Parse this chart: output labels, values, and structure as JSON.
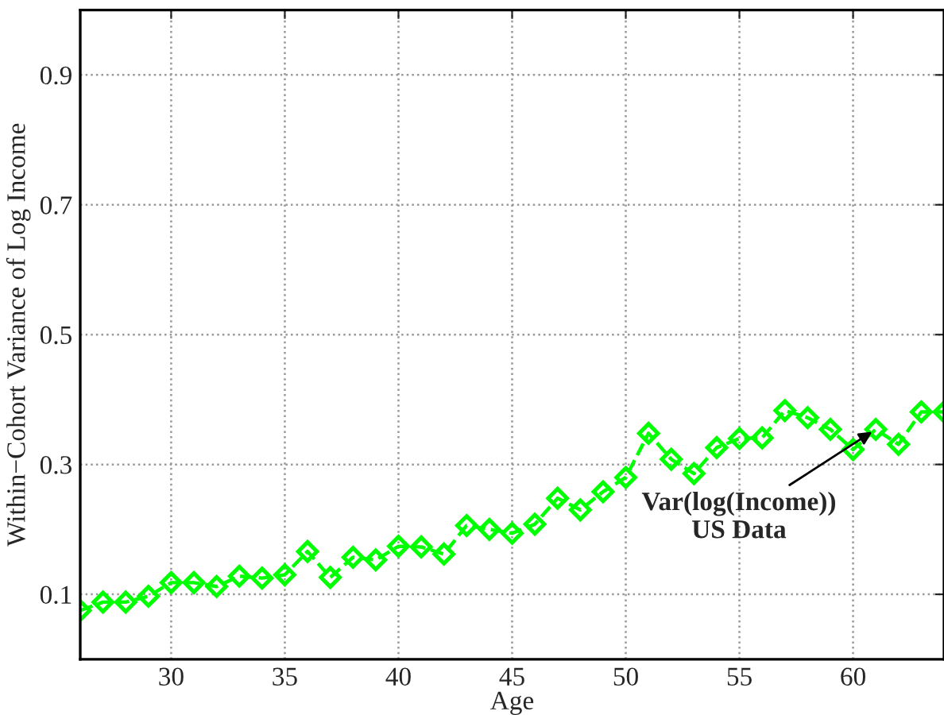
{
  "chart_data": {
    "type": "line",
    "xlabel": "Age",
    "ylabel": "Within−Cohort Variance of Log Income",
    "x": [
      26,
      27,
      28,
      29,
      30,
      31,
      32,
      33,
      34,
      35,
      36,
      37,
      38,
      39,
      40,
      41,
      42,
      43,
      44,
      45,
      46,
      47,
      48,
      49,
      50,
      51,
      52,
      53,
      54,
      55,
      56,
      57,
      58,
      59,
      60,
      61,
      62,
      63,
      64
    ],
    "series": [
      {
        "color": "#00ff00",
        "values": [
          0.075,
          0.088,
          0.088,
          0.097,
          0.118,
          0.118,
          0.112,
          0.128,
          0.125,
          0.13,
          0.166,
          0.126,
          0.157,
          0.153,
          0.174,
          0.173,
          0.162,
          0.206,
          0.2,
          0.194,
          0.208,
          0.248,
          0.23,
          0.258,
          0.28,
          0.348,
          0.308,
          0.286,
          0.326,
          0.34,
          0.341,
          0.383,
          0.372,
          0.354,
          0.323,
          0.354,
          0.331,
          0.381,
          0.381
        ]
      }
    ],
    "marker": "diamond",
    "line_style": "dashed",
    "grid": true,
    "xlim": [
      26,
      64
    ],
    "xticks": [
      30,
      35,
      40,
      45,
      50,
      55,
      60
    ],
    "ylim": [
      0,
      1
    ],
    "yticks": [
      0.1,
      0.3,
      0.5,
      0.7,
      0.9
    ],
    "annotations": [
      {
        "text": "Var(log(Income))\nUS Data",
        "x": 61,
        "y": 0.354
      }
    ]
  }
}
